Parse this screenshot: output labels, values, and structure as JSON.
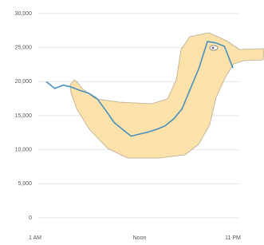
{
  "chart_data": {
    "type": "line",
    "categories": [
      "1 AM",
      null,
      null,
      null,
      null,
      null,
      null,
      null,
      null,
      null,
      null,
      "Noon",
      null,
      null,
      null,
      null,
      null,
      null,
      null,
      null,
      null,
      null,
      "11 PM"
    ],
    "series": [
      {
        "color": "#4a8fc0",
        "values": [
          20000,
          19000,
          19500,
          19200,
          18700,
          18300,
          17500,
          15800,
          14000,
          13000,
          12000,
          12300,
          12600,
          13000,
          13500,
          14500,
          16000,
          19000,
          22000,
          25900,
          25700,
          25200,
          22000
        ]
      }
    ],
    "ylim": [
      0,
      30000
    ],
    "yticks": [
      0,
      {
        "value": 5000,
        "label": "5,000"
      },
      {
        "value": 10000,
        "label": "10,000"
      },
      {
        "value": 15000,
        "label": "15,000"
      },
      {
        "value": 20000,
        "label": "20,000"
      },
      {
        "value": 25000,
        "label": "25,000"
      },
      {
        "value": 30000,
        "label": "30,000"
      }
    ],
    "grid": true
  }
}
